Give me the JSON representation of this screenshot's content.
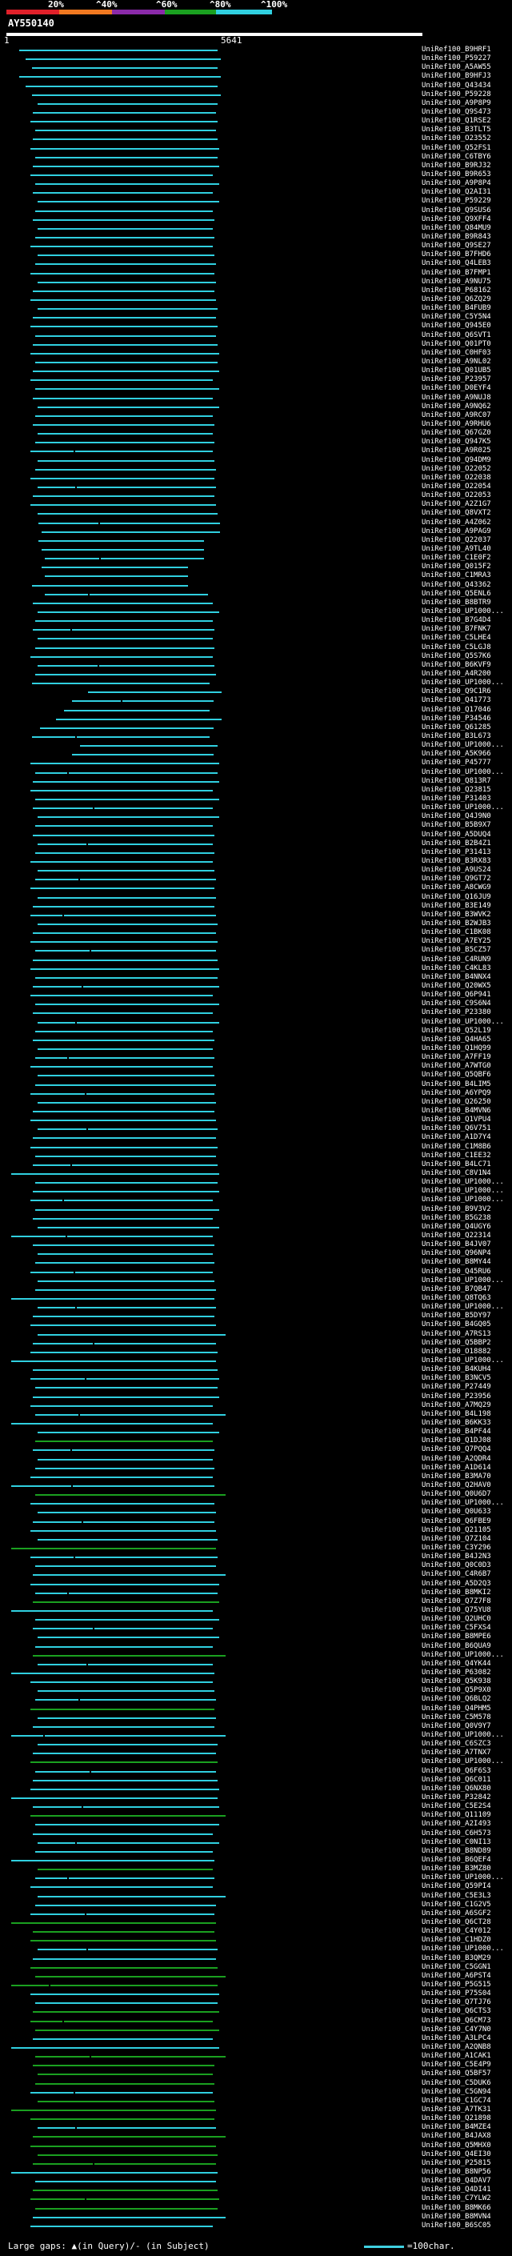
{
  "scale": {
    "labels": [
      "20%",
      "^40%",
      "^60%",
      "^80%",
      "^100%"
    ],
    "colors": [
      "#e0202a",
      "#f07820",
      "#8a2aa8",
      "#1aa020",
      "#30d0e0"
    ]
  },
  "query": {
    "id": "AY550140"
  },
  "ruler": {
    "start": "1",
    "end": "5641"
  },
  "hits": [
    "UniRef100_B9HRF1",
    "UniRef100_P59227",
    "UniRef100_A5AW55",
    "UniRef100_B9HFJ3",
    "UniRef100_Q43434",
    "UniRef100_P59228",
    "UniRef100_A9P8P9",
    "UniRef100_Q9S473",
    "UniRef100_Q1RSE2",
    "UniRef100_B3TLT5",
    "UniRef100_O23552",
    "UniRef100_Q52FS1",
    "UniRef100_C6TBY6",
    "UniRef100_B9RJ32",
    "UniRef100_B9R653",
    "UniRef100_A9P8P4",
    "UniRef100_Q2AI31",
    "UniRef100_P59229",
    "UniRef100_Q9SUS6",
    "UniRef100_Q9XFF4",
    "UniRef100_Q84MU9",
    "UniRef100_B9R843",
    "UniRef100_Q9SE27",
    "UniRef100_B7FHD6",
    "UniRef100_Q4LEB3",
    "UniRef100_B7FMP1",
    "UniRef100_A9NU75",
    "UniRef100_P68162",
    "UniRef100_Q6ZQ29",
    "UniRef100_B4FUB9",
    "UniRef100_C5Y5N4",
    "UniRef100_Q945E0",
    "UniRef100_Q6SVT1",
    "UniRef100_Q01PT0",
    "UniRef100_C0HF03",
    "UniRef100_A9NL02",
    "UniRef100_Q01UB5",
    "UniRef100_P23957",
    "UniRef100_D0EYF4",
    "UniRef100_A9NUJ8",
    "UniRef100_A9NQ62",
    "UniRef100_A9RC07",
    "UniRef100_A9RHU6",
    "UniRef100_Q67GZ0",
    "UniRef100_Q947K5",
    "UniRef100_A9R025",
    "UniRef100_Q94DM9",
    "UniRef100_O22052",
    "UniRef100_O22038",
    "UniRef100_O22054",
    "UniRef100_O22053",
    "UniRef100_A2Z1G7",
    "UniRef100_Q8VXT2",
    "UniRef100_A4Z062",
    "UniRef100_A9PAG9",
    "UniRef100_Q22037",
    "UniRef100_A9TL40",
    "UniRef100_C1E0F2",
    "UniRef100_Q015F2",
    "UniRef100_C1MRA3",
    "UniRef100_Q43362",
    "UniRef100_Q5ENL6",
    "UniRef100_B8BTR9",
    "UniRef100_UP1000...",
    "UniRef100_B7G4D4",
    "UniRef100_B7FNK7",
    "UniRef100_C5LHE4",
    "UniRef100_C5LGJ8",
    "UniRef100_Q5S7K6",
    "UniRef100_B6KVF9",
    "UniRef100_A4R200",
    "UniRef100_UP1000...",
    "UniRef100_Q9C1R6",
    "UniRef100_Q41773",
    "UniRef100_Q17046",
    "UniRef100_P34546",
    "UniRef100_Q61285",
    "UniRef100_B3L673",
    "UniRef100_UP1000...",
    "UniRef100_A5K966",
    "UniRef100_P45777",
    "UniRef100_UP1000...",
    "UniRef100_Q813R7",
    "UniRef100_Q23815",
    "UniRef100_P31403",
    "UniRef100_UP1000...",
    "UniRef100_Q4J9N0",
    "UniRef100_B5B9X7",
    "UniRef100_A5DUQ4",
    "UniRef100_B2B4Z1",
    "UniRef100_P31413",
    "UniRef100_B3RX83",
    "UniRef100_A9US24",
    "UniRef100_Q9GT72",
    "UniRef100_A8CWG9",
    "UniRef100_Q16JU9",
    "UniRef100_B3E149",
    "UniRef100_B3WVK2",
    "UniRef100_B2WJB3",
    "UniRef100_C1BK08",
    "UniRef100_A7EY25",
    "UniRef100_B5CZ57",
    "UniRef100_C4RUN9",
    "UniRef100_C4KL83",
    "UniRef100_B4NNX4",
    "UniRef100_Q20WX5",
    "UniRef100_Q6P941",
    "UniRef100_C9S6N4",
    "UniRef100_P23380",
    "UniRef100_UP1000...",
    "UniRef100_Q52L19",
    "UniRef100_Q4HA65",
    "UniRef100_Q1HQ99",
    "UniRef100_A7FF19",
    "UniRef100_A7WTG0",
    "UniRef100_Q5QBF6",
    "UniRef100_B4LIM5",
    "UniRef100_A6YPQ9",
    "UniRef100_Q26250",
    "UniRef100_B4MVN6",
    "UniRef100_Q1VPU4",
    "UniRef100_Q6V751",
    "UniRef100_A1D7Y4",
    "UniRef100_C1M8B6",
    "UniRef100_C1EE32",
    "UniRef100_B4LC71",
    "UniRef100_C8V1N4",
    "UniRef100_UP1000...",
    "UniRef100_UP1000...",
    "UniRef100_UP1000...",
    "UniRef100_B9V3V2",
    "UniRef100_B5G238",
    "UniRef100_Q4UGY6",
    "UniRef100_Q22314",
    "UniRef100_B4JV07",
    "UniRef100_Q96NP4",
    "UniRef100_B8MY44",
    "UniRef100_Q45RU6",
    "UniRef100_UP1000...",
    "UniRef100_B7QB47",
    "UniRef100_Q8TQ63",
    "UniRef100_UP1000...",
    "UniRef100_B5DY97",
    "UniRef100_B4GQ05",
    "UniRef100_A7RS13",
    "UniRef100_Q5BBP2",
    "UniRef100_O18882",
    "UniRef100_UP1000...",
    "UniRef100_B4KUH4",
    "UniRef100_B3NCV5",
    "UniRef100_P27449",
    "UniRef100_P23956",
    "UniRef100_A7MQ29",
    "UniRef100_B4L198",
    "UniRef100_B6KK33",
    "UniRef100_B4PF44",
    "UniRef100_Q1DJ08",
    "UniRef100_Q7PQQ4",
    "UniRef100_A2QDR4",
    "UniRef100_A1D614",
    "UniRef100_B3MA70",
    "UniRef100_Q2HAV0",
    "UniRef100_Q0U6D7",
    "UniRef100_UP1000...",
    "UniRef100_Q0U633",
    "UniRef100_Q6FBE9",
    "UniRef100_Q21105",
    "UniRef100_Q7Z104",
    "UniRef100_C3Y296",
    "UniRef100_B4J2N3",
    "UniRef100_Q0C0D3",
    "UniRef100_C4R6B7",
    "UniRef100_A5D2Q3",
    "UniRef100_B8MKI2",
    "UniRef100_Q7Z7F8",
    "UniRef100_Q75YU8",
    "UniRef100_Q2UHC0",
    "UniRef100_C5FXS4",
    "UniRef100_B8MPE6",
    "UniRef100_B6QUA9",
    "UniRef100_UP1000...",
    "UniRef100_Q4YK44",
    "UniRef100_P63082",
    "UniRef100_Q5K938",
    "UniRef100_Q5P9X0",
    "UniRef100_Q6BLQ2",
    "UniRef100_Q4PHM5",
    "UniRef100_C5M578",
    "UniRef100_Q0V9Y7",
    "UniRef100_UP1000...",
    "UniRef100_C6SZC3",
    "UniRef100_A7TNX7",
    "UniRef100_UP1000...",
    "UniRef100_Q6F6S3",
    "UniRef100_Q6C011",
    "UniRef100_Q6NX80",
    "UniRef100_P32842",
    "UniRef100_C5E2S4",
    "UniRef100_Q11109",
    "UniRef100_A2I493",
    "UniRef100_C6H573",
    "UniRef100_C0NI13",
    "UniRef100_B8ND89",
    "UniRef100_B6QEF4",
    "UniRef100_B3MZ80",
    "UniRef100_UP1000...",
    "UniRef100_Q59PI4",
    "UniRef100_C5E3L3",
    "UniRef100_C1G2V5",
    "UniRef100_A6SGF2",
    "UniRef100_Q6CT28",
    "UniRef100_C4Y012",
    "UniRef100_C1HDZ0",
    "UniRef100_UP1000...",
    "UniRef100_B3QM29",
    "UniRef100_C5GGN1",
    "UniRef100_A6PST4",
    "UniRef100_P5G515",
    "UniRef100_P75S04",
    "UniRef100_Q7TJ76",
    "UniRef100_Q6CTS3",
    "UniRef100_Q6CM73",
    "UniRef100_C4Y7N0",
    "UniRef100_A3LPC4",
    "UniRef100_A2QNB8",
    "UniRef100_A1CAK1",
    "UniRef100_C5E4P9",
    "UniRef100_Q5BF57",
    "UniRef100_C5DUK6",
    "UniRef100_C5GN94",
    "UniRef100_C1GC74",
    "UniRef100_A7TK31",
    "UniRef100_Q21898",
    "UniRef100_B4MZE4",
    "UniRef100_B4JAX8",
    "UniRef100_Q5MHX0",
    "UniRef100_Q4EI30",
    "UniRef100_P25815",
    "UniRef100_B8NP56",
    "UniRef100_Q4DAV7",
    "UniRef100_Q4DI41",
    "UniRef100_C7YLW2",
    "UniRef100_B8MK66",
    "UniRef100_B8MVN4",
    "UniRef100_B6SC05"
  ],
  "footer": {
    "left": "Large gaps: ▲(in Query)/- (in Subject)",
    "right": "=100char."
  }
}
